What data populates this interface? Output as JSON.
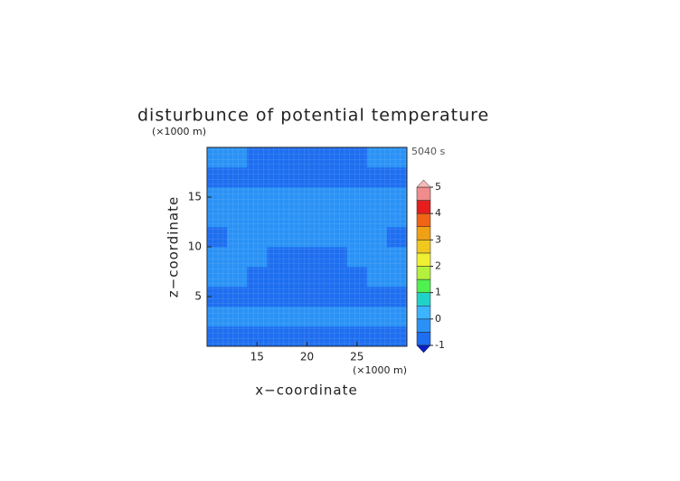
{
  "chart_data": {
    "type": "contour",
    "title": "disturbunce of potential temperature",
    "y_unit": "(×1000 m)",
    "x_unit": "(×1000 m)",
    "time_label": "5040 s",
    "x_label": "x−coordinate",
    "y_label": "z−coordinate",
    "xlim": [
      10,
      30
    ],
    "ylim": [
      0,
      20
    ],
    "xticks": [
      15,
      20,
      25
    ],
    "yticks": [
      5,
      10,
      15
    ],
    "x": [
      11,
      13,
      15,
      17,
      19,
      21,
      23,
      25,
      27,
      29
    ],
    "y": [
      1,
      3,
      5,
      7,
      9,
      11,
      13,
      15,
      17,
      19
    ],
    "z": [
      [
        -0.75,
        -0.75,
        -0.75,
        -0.75,
        -0.75,
        -0.75,
        -0.75,
        -0.75,
        -0.75,
        -0.75
      ],
      [
        -0.25,
        -0.25,
        -0.25,
        -0.25,
        -0.25,
        -0.25,
        -0.25,
        -0.25,
        -0.25,
        -0.25
      ],
      [
        -0.75,
        -0.75,
        -0.75,
        -0.75,
        -0.75,
        -0.75,
        -0.75,
        -0.75,
        -0.75,
        -0.75
      ],
      [
        -0.25,
        -0.25,
        -0.75,
        -0.75,
        -0.75,
        -0.75,
        -0.75,
        -0.75,
        -0.25,
        -0.25
      ],
      [
        -0.25,
        -0.25,
        -0.25,
        -0.75,
        -0.75,
        -0.75,
        -0.75,
        -0.25,
        -0.25,
        -0.25
      ],
      [
        -0.75,
        -0.25,
        -0.25,
        -0.25,
        -0.25,
        -0.25,
        -0.25,
        -0.25,
        -0.25,
        -0.75
      ],
      [
        -0.25,
        -0.25,
        -0.25,
        -0.25,
        -0.25,
        -0.25,
        -0.25,
        -0.25,
        -0.25,
        -0.25
      ],
      [
        -0.25,
        -0.25,
        -0.25,
        -0.25,
        -0.25,
        -0.25,
        -0.25,
        -0.25,
        -0.25,
        -0.25
      ],
      [
        -0.75,
        -0.75,
        -0.75,
        -0.75,
        -0.75,
        -0.75,
        -0.75,
        -0.75,
        -0.75,
        -0.75
      ],
      [
        -0.25,
        -0.25,
        -0.75,
        -0.75,
        -0.75,
        -0.75,
        -0.75,
        -0.75,
        -0.25,
        -0.25
      ]
    ],
    "levels": [
      -1,
      -0.5,
      0,
      0.5,
      1,
      1.5,
      2,
      2.5,
      3,
      3.5,
      4,
      4.5,
      5
    ],
    "colors": [
      "#1e6ef0",
      "#2a92f6",
      "#3cb4ff",
      "#20d2c8",
      "#50f050",
      "#b4f03c",
      "#f0f032",
      "#f0c81e",
      "#f0a014",
      "#f06414",
      "#e61e1e",
      "#f08c8c"
    ],
    "under_color": "#0a1ec8",
    "over_color": "#f5b9b9",
    "colorbar_ticks": [
      -1,
      0,
      1,
      2,
      3,
      4,
      5
    ]
  }
}
